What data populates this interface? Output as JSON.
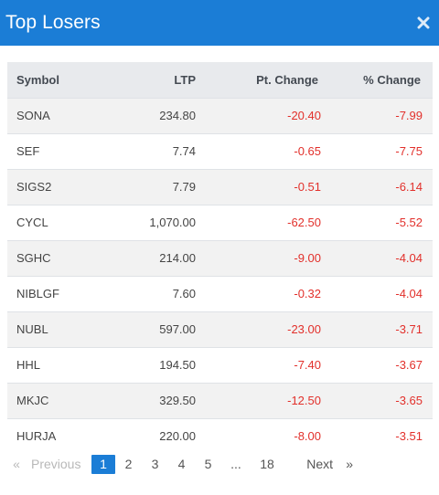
{
  "header": {
    "title": "Top Losers",
    "close_icon": "close-icon"
  },
  "table": {
    "columns": [
      "Symbol",
      "LTP",
      "Pt. Change",
      "% Change"
    ],
    "rows": [
      {
        "symbol": "SONA",
        "ltp": "234.80",
        "pt_change": "-20.40",
        "pct_change": "-7.99"
      },
      {
        "symbol": "SEF",
        "ltp": "7.74",
        "pt_change": "-0.65",
        "pct_change": "-7.75"
      },
      {
        "symbol": "SIGS2",
        "ltp": "7.79",
        "pt_change": "-0.51",
        "pct_change": "-6.14"
      },
      {
        "symbol": "CYCL",
        "ltp": "1,070.00",
        "pt_change": "-62.50",
        "pct_change": "-5.52"
      },
      {
        "symbol": "SGHC",
        "ltp": "214.00",
        "pt_change": "-9.00",
        "pct_change": "-4.04"
      },
      {
        "symbol": "NIBLGF",
        "ltp": "7.60",
        "pt_change": "-0.32",
        "pct_change": "-4.04"
      },
      {
        "symbol": "NUBL",
        "ltp": "597.00",
        "pt_change": "-23.00",
        "pct_change": "-3.71"
      },
      {
        "symbol": "HHL",
        "ltp": "194.50",
        "pt_change": "-7.40",
        "pct_change": "-3.67"
      },
      {
        "symbol": "MKJC",
        "ltp": "329.50",
        "pt_change": "-12.50",
        "pct_change": "-3.65"
      },
      {
        "symbol": "HURJA",
        "ltp": "220.00",
        "pt_change": "-8.00",
        "pct_change": "-3.51"
      }
    ]
  },
  "pagination": {
    "prev_arrow": "«",
    "prev_label": "Previous",
    "pages": [
      "1",
      "2",
      "3",
      "4",
      "5"
    ],
    "ellipsis": "...",
    "last_page": "18",
    "next_label": "Next",
    "next_arrow": "»",
    "current": "1"
  },
  "colors": {
    "header_bg": "#1b7dd6",
    "negative": "#e2302b",
    "active_page": "#1b7dd6"
  }
}
